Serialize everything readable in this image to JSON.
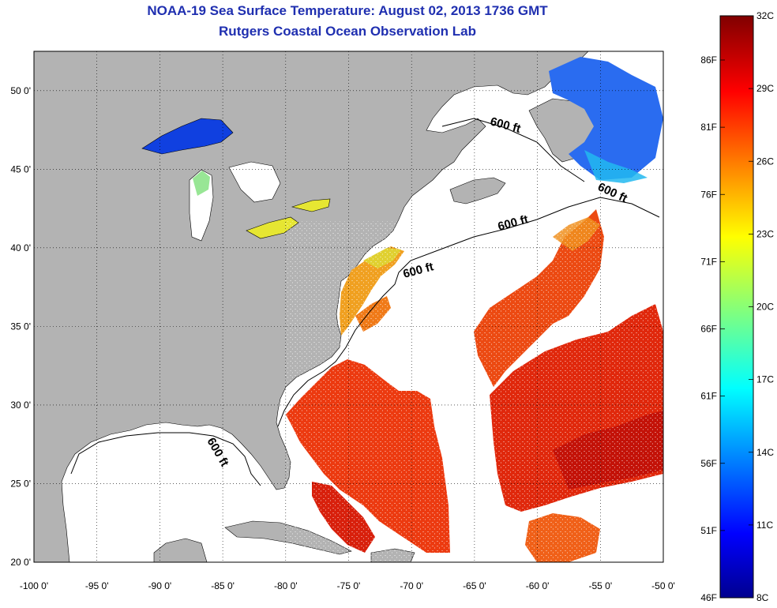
{
  "title": "NOAA-19 Sea Surface Temperature:  August 02, 2013 1736 GMT",
  "subtitle": "Rutgers Coastal Ocean Observation Lab",
  "map": {
    "lon_range": [
      -100,
      -50
    ],
    "lat_range": [
      20,
      52.5
    ],
    "lon_ticks": [
      -100,
      -95,
      -90,
      -85,
      -80,
      -75,
      -70,
      -65,
      -60,
      -55,
      -50
    ],
    "lat_ticks": [
      20,
      25,
      30,
      35,
      40,
      45,
      50
    ],
    "lon_labels": [
      "-100 0'",
      "-95 0'",
      "-90 0'",
      "-85 0'",
      "-80 0'",
      "-75 0'",
      "-70 0'",
      "-65 0'",
      "-60 0'",
      "-55 0'",
      "-50 0'"
    ],
    "lat_labels": [
      "20 0'",
      "25 0'",
      "30 0'",
      "35 0'",
      "40 0'",
      "45 0'",
      "50 0'"
    ],
    "grid": "dotted",
    "land_color": "#b3b3b3",
    "contour_label": "600 ft"
  },
  "colorbar": {
    "min_c": 8,
    "max_c": 32,
    "celsius_labels": [
      "32C",
      "29C",
      "26C",
      "23C",
      "20C",
      "17C",
      "14C",
      "11C",
      "8C"
    ],
    "fahrenheit_labels": [
      "86F",
      "81F",
      "76F",
      "71F",
      "66F",
      "61F",
      "56F",
      "51F",
      "46F"
    ],
    "colormap": "jet"
  }
}
